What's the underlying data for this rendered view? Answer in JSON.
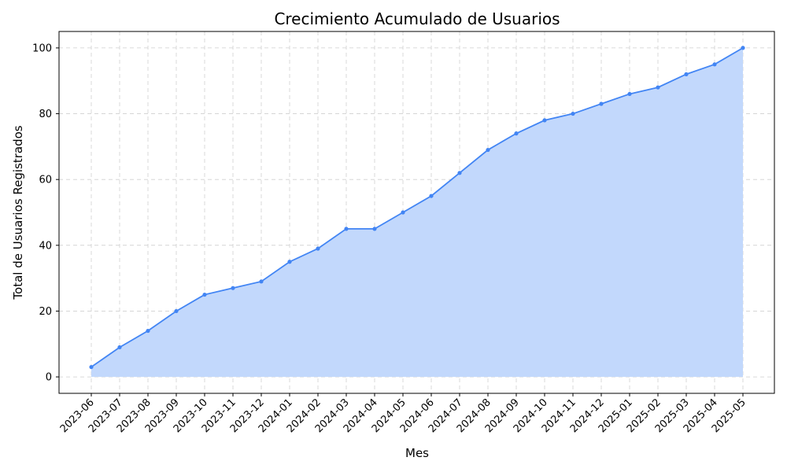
{
  "chart_data": {
    "type": "area",
    "title": "Crecimiento Acumulado de Usuarios",
    "xlabel": "Mes",
    "ylabel": "Total de Usuarios Registrados",
    "categories": [
      "2023-06",
      "2023-07",
      "2023-08",
      "2023-09",
      "2023-10",
      "2023-11",
      "2023-12",
      "2024-01",
      "2024-02",
      "2024-03",
      "2024-04",
      "2024-05",
      "2024-06",
      "2024-07",
      "2024-08",
      "2024-09",
      "2024-10",
      "2024-11",
      "2024-12",
      "2025-01",
      "2025-02",
      "2025-03",
      "2025-04",
      "2025-05"
    ],
    "values": [
      3,
      9,
      14,
      20,
      25,
      27,
      29,
      35,
      39,
      45,
      45,
      50,
      55,
      62,
      69,
      74,
      78,
      80,
      83,
      86,
      88,
      92,
      95,
      100
    ],
    "ylim": [
      -5,
      105
    ],
    "yticks": [
      0,
      20,
      40,
      60,
      80,
      100
    ],
    "grid": true,
    "colors": {
      "line": "#4285f4",
      "fill": "#c2d8fc"
    }
  }
}
